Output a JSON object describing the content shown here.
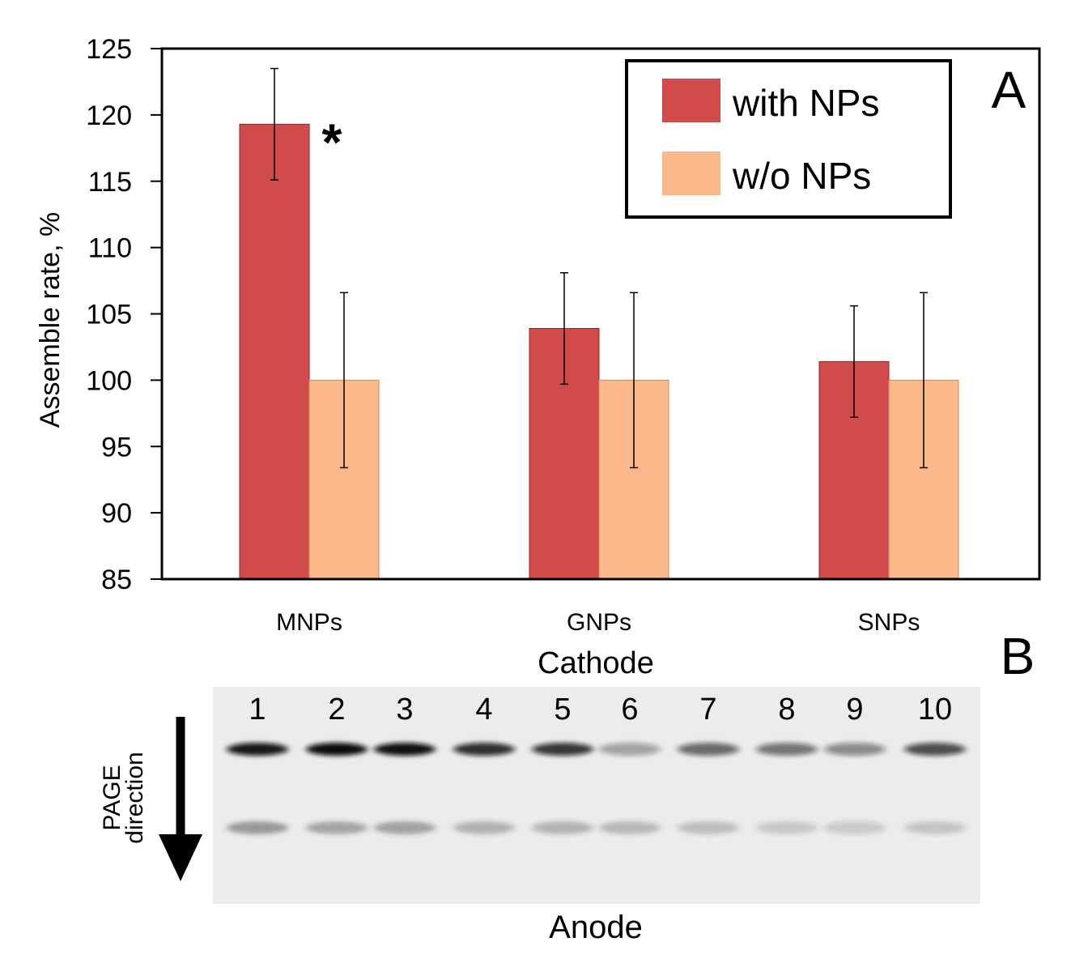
{
  "panels": {
    "a_label": "A",
    "b_label": "B"
  },
  "chart_data": {
    "type": "bar",
    "title": "",
    "xlabel": "Cathode",
    "ylabel": "Assemble rate, %",
    "ylim": [
      85,
      125
    ],
    "yticks": [
      85,
      90,
      95,
      100,
      105,
      110,
      115,
      120,
      125
    ],
    "categories": [
      "MNPs",
      "GNPs",
      "SNPs"
    ],
    "series": [
      {
        "name": "with NPs",
        "color": "#d14b4b",
        "values": [
          119.3,
          103.9,
          101.4
        ],
        "errors": [
          4.2,
          4.2,
          4.2
        ]
      },
      {
        "name": "w/o NPs",
        "color": "#fbb98b",
        "values": [
          100,
          100,
          100
        ],
        "errors": [
          6.6,
          6.6,
          6.6
        ]
      }
    ],
    "annotations": [
      {
        "text": "*",
        "category": "MNPs"
      }
    ],
    "legend": "top-right"
  },
  "gel": {
    "lanes": [
      "1",
      "2",
      "3",
      "4",
      "5",
      "6",
      "7",
      "8",
      "9",
      "10"
    ],
    "direction_label_line1": "PAGE",
    "direction_label_line2": "direction",
    "bottom_label": "Anode"
  }
}
